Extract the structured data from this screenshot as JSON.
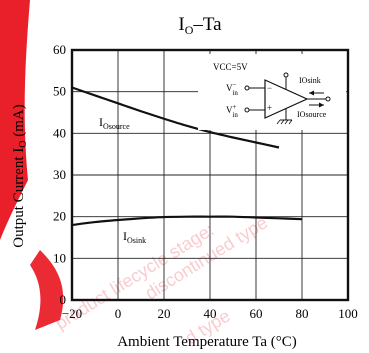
{
  "chart_data": {
    "type": "line",
    "title": "IO–Ta",
    "title_main": "I",
    "title_sub": "O",
    "title_rest": "–Ta",
    "xlabel": "Ambient Temperature  Ta (°C)",
    "ylabel": "Output Current  I",
    "ylabel_sub": "O",
    "ylabel_rest": " (mA)",
    "xlim": [
      -20,
      100
    ],
    "ylim": [
      0,
      60
    ],
    "x_ticks": [
      -20,
      0,
      20,
      40,
      60,
      80,
      100
    ],
    "y_ticks": [
      0,
      10,
      20,
      30,
      40,
      50,
      60
    ],
    "x_tick_labels": [
      "−20",
      "0",
      "20",
      "40",
      "60",
      "80",
      "100"
    ],
    "y_tick_labels": [
      "0",
      "10",
      "20",
      "30",
      "40",
      "50",
      "60"
    ],
    "grid": true,
    "series": [
      {
        "name": "IOsource",
        "label_main": "I",
        "label_sub": "Osource",
        "x": [
          -20,
          -10,
          0,
          10,
          20,
          30,
          40,
          50,
          60,
          70
        ],
        "y": [
          51,
          49.1,
          47.2,
          45.3,
          43.5,
          41.8,
          40.3,
          39,
          37.8,
          36.6
        ]
      },
      {
        "name": "IOsink",
        "label_main": "I",
        "label_sub": "Osink",
        "x": [
          -20,
          -10,
          0,
          10,
          20,
          30,
          40,
          50,
          60,
          70,
          80
        ],
        "y": [
          18,
          18.7,
          19.2,
          19.6,
          19.9,
          20,
          20,
          20,
          19.8,
          19.6,
          19.4
        ]
      }
    ],
    "inset": {
      "vcc": "VCC=5V",
      "vin_minus": "V",
      "vin_minus_sup": "−",
      "vin_minus_sub": "in",
      "vin_plus": "V",
      "vin_plus_sup": "+",
      "vin_plus_sub": "in",
      "minus_sign": "−",
      "plus_sign": "+",
      "io_sink": "IOsink",
      "io_source": "IOsource"
    }
  },
  "watermark": {
    "lines": [
      "product lifecycle stage:",
      "discontinued type",
      "d type"
    ]
  },
  "colors": {
    "watermark": "#e8141e",
    "axis": "#111111",
    "grid": "#222222",
    "curve": "#111111"
  }
}
